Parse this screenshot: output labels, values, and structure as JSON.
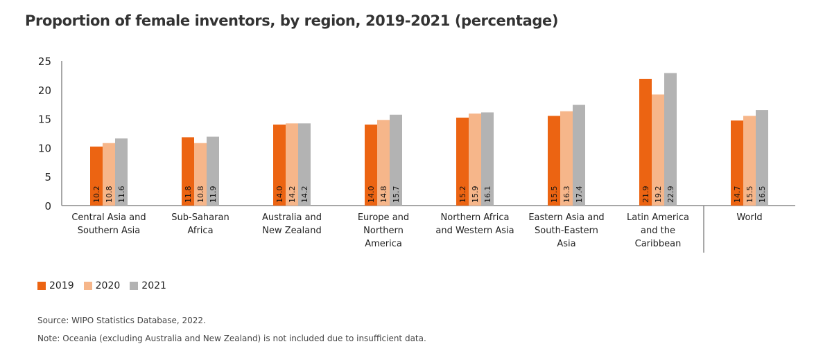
{
  "chart_data": {
    "type": "bar",
    "title": "Proportion of female inventors, by region, 2019-2021 (percentage)",
    "xlabel": "",
    "ylabel": "",
    "ylim": [
      0,
      25
    ],
    "yticks": [
      "0",
      "5",
      "10",
      "15",
      "20",
      "25"
    ],
    "grid": false,
    "legend_position": "bottom-left",
    "categories": [
      [
        "Central Asia and",
        "Southern Asia"
      ],
      [
        "Sub-Saharan",
        "Africa"
      ],
      [
        "Australia and",
        "New Zealand"
      ],
      [
        "Europe and",
        "Northern",
        "America"
      ],
      [
        "Northern Africa",
        "and Western Asia"
      ],
      [
        "Eastern Asia and",
        "South-Eastern",
        "Asia"
      ],
      [
        "Latin America",
        "and the",
        "Caribbean"
      ],
      [
        "World"
      ]
    ],
    "separator_before_category": 7,
    "series": [
      {
        "name": "2019",
        "color": "#ec6412",
        "values": [
          10.2,
          11.8,
          14.0,
          14.0,
          15.2,
          15.5,
          21.9,
          14.7
        ]
      },
      {
        "name": "2020",
        "color": "#f6b68a",
        "values": [
          10.8,
          10.8,
          14.2,
          14.8,
          15.9,
          16.3,
          19.2,
          15.5
        ]
      },
      {
        "name": "2021",
        "color": "#b3b3b3",
        "values": [
          11.6,
          11.9,
          14.2,
          15.7,
          16.1,
          17.4,
          22.9,
          16.5
        ]
      }
    ]
  },
  "legend": [
    {
      "label": "2019",
      "color": "#ec6412"
    },
    {
      "label": "2020",
      "color": "#f6b68a"
    },
    {
      "label": "2021",
      "color": "#b3b3b3"
    }
  ],
  "footer": {
    "source": "Source: WIPO Statistics Database, 2022.",
    "note": "Note: Oceania (excluding Australia and New Zealand) is not included due to insufficient data."
  }
}
